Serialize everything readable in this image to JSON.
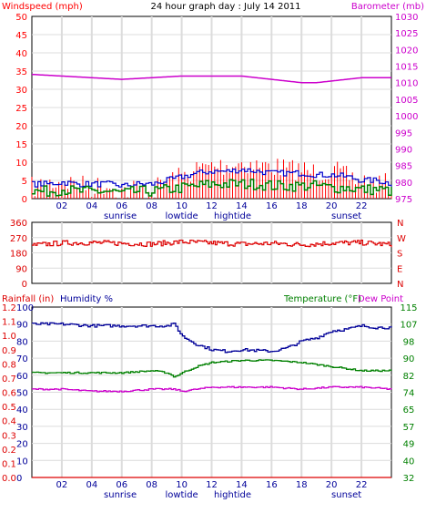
{
  "colors": {
    "wind": "#ff0000",
    "gust_avg": "#0000cc",
    "wind_low": "#008000",
    "barometer": "#cc00cc",
    "direction": "#dd0000",
    "rainfall": "#dd0000",
    "humidity": "#000099",
    "temperature": "#008000",
    "dew_point": "#cc00cc",
    "grid": "#dcdcdc",
    "frame": "#000000"
  },
  "top": {
    "title": "24 hour graph day : July 14 2011",
    "left_label": "Windspeed (mph)",
    "right_label": "Barometer (mb)"
  },
  "middle": {
    "right_letters": [
      "N",
      "W",
      "S",
      "E",
      "N"
    ]
  },
  "bottom": {
    "label_rain": "Rainfall (in)",
    "label_humidity": "Humidity %",
    "label_temp": "Temperature (°F)",
    "label_dew": "Dew Point"
  },
  "x_axis": {
    "hours": [
      "02",
      "04",
      "06",
      "08",
      "10",
      "12",
      "14",
      "16",
      "18",
      "20",
      "22"
    ],
    "events": [
      {
        "label": "sunrise",
        "hour": 5.9
      },
      {
        "label": "lowtide",
        "hour": 10.0
      },
      {
        "label": "hightide",
        "hour": 13.4
      },
      {
        "label": "sunset",
        "hour": 21.0
      }
    ]
  },
  "chart_data": [
    {
      "type": "line",
      "id": "wind_baro",
      "x_range_hours": [
        0,
        24
      ],
      "y_left": {
        "ticks": [
          "0",
          "5",
          "10",
          "15",
          "20",
          "25",
          "30",
          "35",
          "40",
          "45",
          "50"
        ],
        "ylim": [
          0,
          50
        ]
      },
      "y_right": {
        "ticks": [
          "975",
          "980",
          "985",
          "990",
          "995",
          "1000",
          "1005",
          "1010",
          "1015",
          "1020",
          "1025",
          "1030"
        ],
        "ylim": [
          975,
          1030
        ]
      },
      "series": [
        {
          "key": "wind_gust",
          "style": "bars",
          "axis": "left",
          "color_key": "wind",
          "x": [
            0,
            1,
            2,
            3,
            4,
            5,
            6,
            7,
            8,
            9,
            10,
            11,
            12,
            13,
            14,
            15,
            16,
            17,
            18,
            19,
            20,
            21,
            22,
            23,
            24
          ],
          "values": [
            6,
            7,
            8,
            7,
            6,
            7,
            5,
            6,
            5,
            8,
            9,
            11,
            12,
            12,
            13,
            12,
            12,
            11,
            11,
            10,
            11,
            9,
            8,
            7,
            7
          ]
        },
        {
          "key": "wind_avg",
          "style": "line",
          "axis": "left",
          "color_key": "gust_avg",
          "x": [
            0,
            1,
            2,
            3,
            4,
            5,
            6,
            7,
            8,
            9,
            10,
            11,
            12,
            13,
            14,
            15,
            16,
            17,
            18,
            19,
            20,
            21,
            22,
            23,
            24
          ],
          "values": [
            4,
            4,
            4.5,
            4,
            4,
            4,
            3.5,
            4,
            4,
            5,
            6,
            7,
            7.5,
            7.5,
            8,
            7.5,
            7,
            7,
            7,
            6.5,
            6.5,
            6,
            5,
            5,
            4
          ]
        },
        {
          "key": "wind_low",
          "style": "line",
          "axis": "left",
          "color_key": "wind_low",
          "x": [
            0,
            1,
            2,
            3,
            4,
            5,
            6,
            7,
            8,
            9,
            10,
            11,
            12,
            13,
            14,
            15,
            16,
            17,
            18,
            19,
            20,
            21,
            22,
            23,
            24
          ],
          "values": [
            2,
            2,
            2.5,
            2,
            2,
            2,
            1.5,
            2,
            2,
            2.5,
            3,
            3.5,
            4,
            4,
            4,
            4,
            3.5,
            3.5,
            3.5,
            3.5,
            3,
            3,
            2.5,
            2.5,
            2
          ]
        },
        {
          "key": "barometer",
          "style": "line",
          "axis": "right",
          "color_key": "barometer",
          "x": [
            0,
            2,
            4,
            6,
            8,
            10,
            12,
            14,
            16,
            18,
            19,
            20,
            22,
            24
          ],
          "values": [
            1012.5,
            1012,
            1011.5,
            1011,
            1011.5,
            1012,
            1012,
            1012,
            1011,
            1010,
            1010,
            1010.5,
            1011.5,
            1011.5
          ]
        }
      ]
    },
    {
      "type": "line",
      "id": "wind_direction",
      "x_range_hours": [
        0,
        24
      ],
      "y_left": {
        "ticks": [
          "0",
          "90",
          "180",
          "270",
          "360"
        ],
        "ylim": [
          0,
          360
        ]
      },
      "series": [
        {
          "key": "direction",
          "style": "line",
          "axis": "left",
          "color_key": "direction",
          "x": [
            0,
            2,
            4,
            6,
            8,
            10,
            12,
            14,
            16,
            18,
            20,
            22,
            24
          ],
          "values": [
            225,
            238,
            240,
            236,
            232,
            245,
            238,
            232,
            236,
            228,
            238,
            240,
            228
          ]
        }
      ]
    },
    {
      "type": "line",
      "id": "humidity_temp",
      "x_range_hours": [
        0,
        24
      ],
      "y_rain": {
        "ticks": [
          "0.0",
          "0.1",
          "0.2",
          "0.3",
          "0.4",
          "0.5",
          "0.6",
          "0.7",
          "0.8",
          "0.9",
          "1.0",
          "1.1",
          "1.2"
        ],
        "ylim": [
          0,
          1.2
        ]
      },
      "y_humidity": {
        "ticks": [
          "0",
          "10",
          "20",
          "30",
          "40",
          "50",
          "60",
          "70",
          "80",
          "90",
          "100"
        ],
        "ylim": [
          0,
          100
        ]
      },
      "y_temp": {
        "ticks": [
          "32",
          "40",
          "49",
          "57",
          "65",
          "74",
          "82",
          "90",
          "98",
          "107",
          "115"
        ],
        "ylim": [
          32,
          115
        ]
      },
      "series": [
        {
          "key": "rainfall",
          "axis": "rain",
          "color_key": "rainfall",
          "x": [
            0,
            24
          ],
          "values": [
            0.0,
            0.0
          ]
        },
        {
          "key": "humidity",
          "axis": "humidity",
          "color_key": "humidity",
          "x": [
            0,
            2,
            4,
            6,
            8,
            9,
            9.5,
            10,
            11,
            12,
            13,
            14,
            16,
            17,
            18,
            19,
            20,
            21,
            22,
            23,
            24
          ],
          "values": [
            90,
            90,
            89,
            89,
            89,
            89,
            90,
            83,
            78,
            75,
            74,
            75,
            74,
            76,
            80,
            82,
            86,
            87,
            89,
            88,
            88
          ]
        },
        {
          "key": "temperature",
          "axis": "temp",
          "color_key": "temperature",
          "x": [
            0,
            2,
            4,
            6,
            8,
            9,
            9.5,
            10,
            11,
            12,
            14,
            16,
            18,
            20,
            22,
            24
          ],
          "values": [
            83,
            83,
            83,
            83,
            84,
            83,
            81,
            83,
            86,
            88,
            89,
            89,
            88,
            86,
            84,
            84
          ]
        },
        {
          "key": "dew_point",
          "axis": "temp",
          "color_key": "dew_point",
          "x": [
            0,
            2,
            4,
            6,
            8,
            9.5,
            10,
            12,
            14,
            16,
            18,
            20,
            22,
            24
          ],
          "values": [
            75,
            75,
            74,
            74,
            75,
            75,
            74,
            76,
            76,
            76,
            75,
            76,
            76,
            75
          ]
        }
      ]
    }
  ]
}
